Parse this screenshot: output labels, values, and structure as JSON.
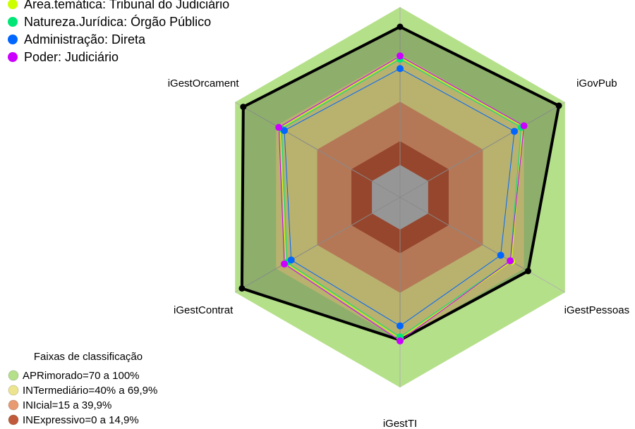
{
  "chart_data": {
    "type": "radar",
    "categories": [
      null,
      "iGovPub",
      "iGestPessoas",
      "iGestTI",
      "iGestContrat",
      "iGestOrcament"
    ],
    "rlim": [
      0,
      100
    ],
    "series": [
      {
        "color": "#000000",
        "values": [
          87.5,
          95.5,
          73,
          70,
          95,
          94
        ]
      },
      {
        "name": "Área.temática: Tribunal do Judiciário",
        "color": "#ccff00",
        "values": [
          68,
          69,
          61,
          69,
          63,
          67
        ]
      },
      {
        "name": "Natureza.Jurídica: Órgão Público",
        "color": "#00e676",
        "values": [
          67,
          68,
          60,
          68,
          62,
          66
        ]
      },
      {
        "name": "Administração: Direta",
        "color": "#0066ff",
        "values": [
          61,
          63,
          53,
          61,
          59,
          64
        ]
      },
      {
        "name": "Poder: Judiciário",
        "color": "#cc00ff",
        "values": [
          69,
          70,
          60,
          70.5,
          64,
          68
        ]
      }
    ],
    "bands_title": "Faixas de classificação",
    "bands": [
      {
        "label": "APRimorado=70 a 100%",
        "min": 70,
        "max": 100,
        "color": "#b5e08a"
      },
      {
        "label": "INTermediário=40% a 69,9%",
        "min": 40,
        "max": 70,
        "color": "#ece48e"
      },
      {
        "label": "INIcial=15 a 39,9%",
        "min": 15,
        "max": 40,
        "color": "#e89a70"
      },
      {
        "label": "INExpressivo=0 a 14,9%",
        "min": 0,
        "max": 15,
        "color": "#c05a3a"
      }
    ]
  }
}
